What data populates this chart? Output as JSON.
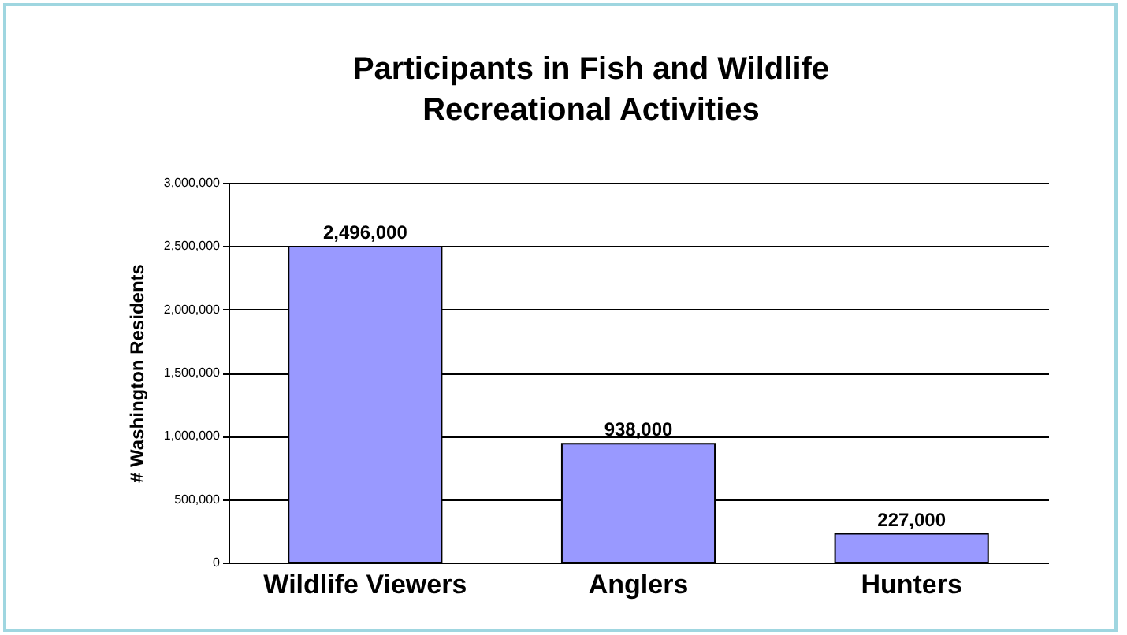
{
  "chart_data": {
    "type": "bar",
    "title": [
      "Participants in Fish and Wildlife",
      "Recreational Activities"
    ],
    "ylabel": "# Washington Residents",
    "categories": [
      "Wildlife Viewers",
      "Anglers",
      "Hunters"
    ],
    "values": [
      2496000,
      938000,
      227000
    ],
    "value_labels": [
      "2,496,000",
      "938,000",
      "227,000"
    ],
    "color": "#9999ff",
    "ylim": [
      0,
      3000000
    ],
    "yticks": [
      0,
      {
        "value": 500000,
        "label": "500,000"
      },
      {
        "value": 1000000,
        "label": "1,000,000"
      },
      {
        "value": 1500000,
        "label": "1,500,000"
      },
      {
        "value": 2000000,
        "label": "2,000,000"
      },
      {
        "value": 2500000,
        "label": "2,500,000"
      },
      {
        "value": 3000000,
        "label": "3,000,000"
      }
    ],
    "grid": "y"
  }
}
